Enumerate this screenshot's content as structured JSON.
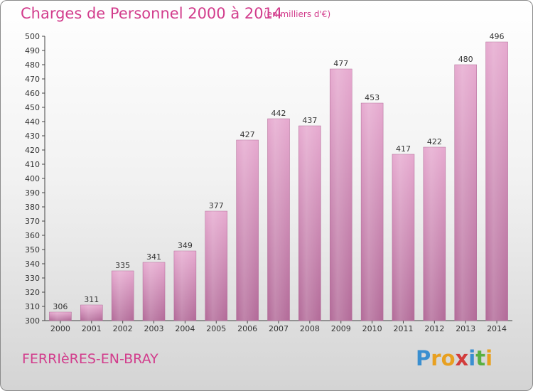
{
  "title": "Charges de Personnel 2000 à 2014",
  "subtitle": "(en milliers d'€)",
  "commune": "FERRIèRES-EN-BRAY",
  "logo": {
    "letters": [
      "P",
      "r",
      "o",
      "x",
      "i",
      "t",
      "i"
    ],
    "colors": [
      "#3a8fd0",
      "#e8a020",
      "#e8a020",
      "#d23c3c",
      "#3a8fd0",
      "#5ab040",
      "#e8a020"
    ]
  },
  "chart_data": {
    "type": "bar",
    "title": "Charges de Personnel 2000 à 2014",
    "subtitle": "(en milliers d'€)",
    "categories": [
      "2000",
      "2001",
      "2002",
      "2003",
      "2004",
      "2005",
      "2006",
      "2007",
      "2008",
      "2009",
      "2010",
      "2011",
      "2012",
      "2013",
      "2014"
    ],
    "values": [
      306,
      311,
      335,
      341,
      349,
      377,
      427,
      442,
      437,
      477,
      453,
      417,
      422,
      480,
      496
    ],
    "ylim": [
      300,
      500
    ],
    "ytick_step": 10,
    "grid": false,
    "bar_color": "#d98fbb",
    "xlabel": "",
    "ylabel": ""
  }
}
